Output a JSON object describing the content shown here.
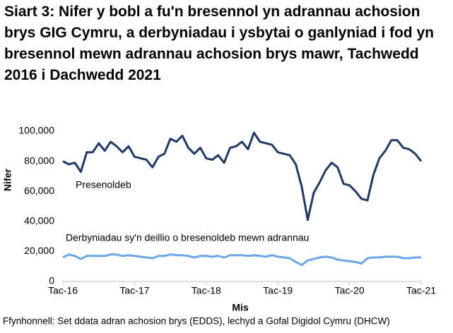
{
  "chart_data": {
    "type": "line",
    "title": "Siart 3: Nifer y bobl a fu'n bresennol yn adrannau achosion brys GIG Cymru, a derbyniadau i ysbytai o ganlyniad i fod yn bresennol mewn adrannau achosion brys mawr, Tachwedd 2016 i Dachwedd 2021",
    "xlabel": "Mis",
    "ylabel": "Nifer",
    "source": "Ffynhonnell: Set ddata adran achosion brys (EDDS), lechyd a Gofal Digidol Cymru (DHCW)",
    "categories": [
      "Tac-16",
      null,
      null,
      null,
      null,
      null,
      null,
      null,
      null,
      null,
      null,
      null,
      "Tac-17",
      null,
      null,
      null,
      null,
      null,
      null,
      null,
      null,
      null,
      null,
      null,
      "Tac-18",
      null,
      null,
      null,
      null,
      null,
      null,
      null,
      null,
      null,
      null,
      null,
      "Tac-19",
      null,
      null,
      null,
      null,
      null,
      null,
      null,
      null,
      null,
      null,
      null,
      "Tac-20",
      null,
      null,
      null,
      null,
      null,
      null,
      null,
      null,
      null,
      null,
      null,
      "Tac-21"
    ],
    "ylim": [
      0,
      100000
    ],
    "yticks": [
      0,
      {
        "value": 20000,
        "label": "20,000"
      },
      {
        "value": 40000,
        "label": "40,000"
      },
      {
        "value": 60000,
        "label": "60,000"
      },
      {
        "value": 80000,
        "label": "80,000"
      },
      {
        "value": 100000,
        "label": "100,000"
      }
    ],
    "grid": false,
    "series": [
      {
        "name": "Presenoldeb",
        "color": "#1f3864",
        "values": [
          80000,
          78000,
          79000,
          73000,
          86000,
          86000,
          92000,
          87000,
          93000,
          90000,
          86000,
          90000,
          83000,
          82000,
          81000,
          76000,
          83000,
          85000,
          95000,
          93000,
          97000,
          89000,
          85000,
          89000,
          82000,
          81000,
          84000,
          79000,
          89000,
          90000,
          93000,
          88000,
          99000,
          93000,
          92000,
          91000,
          86000,
          85000,
          84000,
          78000,
          63000,
          41000,
          59000,
          66000,
          74000,
          79000,
          76000,
          65000,
          64000,
          60000,
          55000,
          54000,
          71000,
          82000,
          87000,
          94000,
          94000,
          89000,
          88000,
          85000,
          80000
        ]
      },
      {
        "name": "Derbyniadau sy'n deillio o bresenoldeb mewn adrannau",
        "color": "#6aa6e8",
        "values": [
          16000,
          18000,
          17000,
          15000,
          17000,
          17000,
          17000,
          17000,
          18000,
          18000,
          17000,
          17500,
          17000,
          16500,
          16000,
          15500,
          17000,
          17000,
          18000,
          17500,
          17500,
          17000,
          16000,
          17000,
          17000,
          16500,
          17000,
          16000,
          17500,
          17500,
          17500,
          17000,
          17500,
          17000,
          16500,
          17500,
          16500,
          16000,
          15500,
          13000,
          11000,
          14000,
          15000,
          16000,
          16500,
          16000,
          14500,
          14000,
          13500,
          13000,
          12000,
          15500,
          16000,
          16000,
          16500,
          16500,
          16500,
          15500,
          15500,
          16000,
          16000
        ]
      }
    ]
  }
}
